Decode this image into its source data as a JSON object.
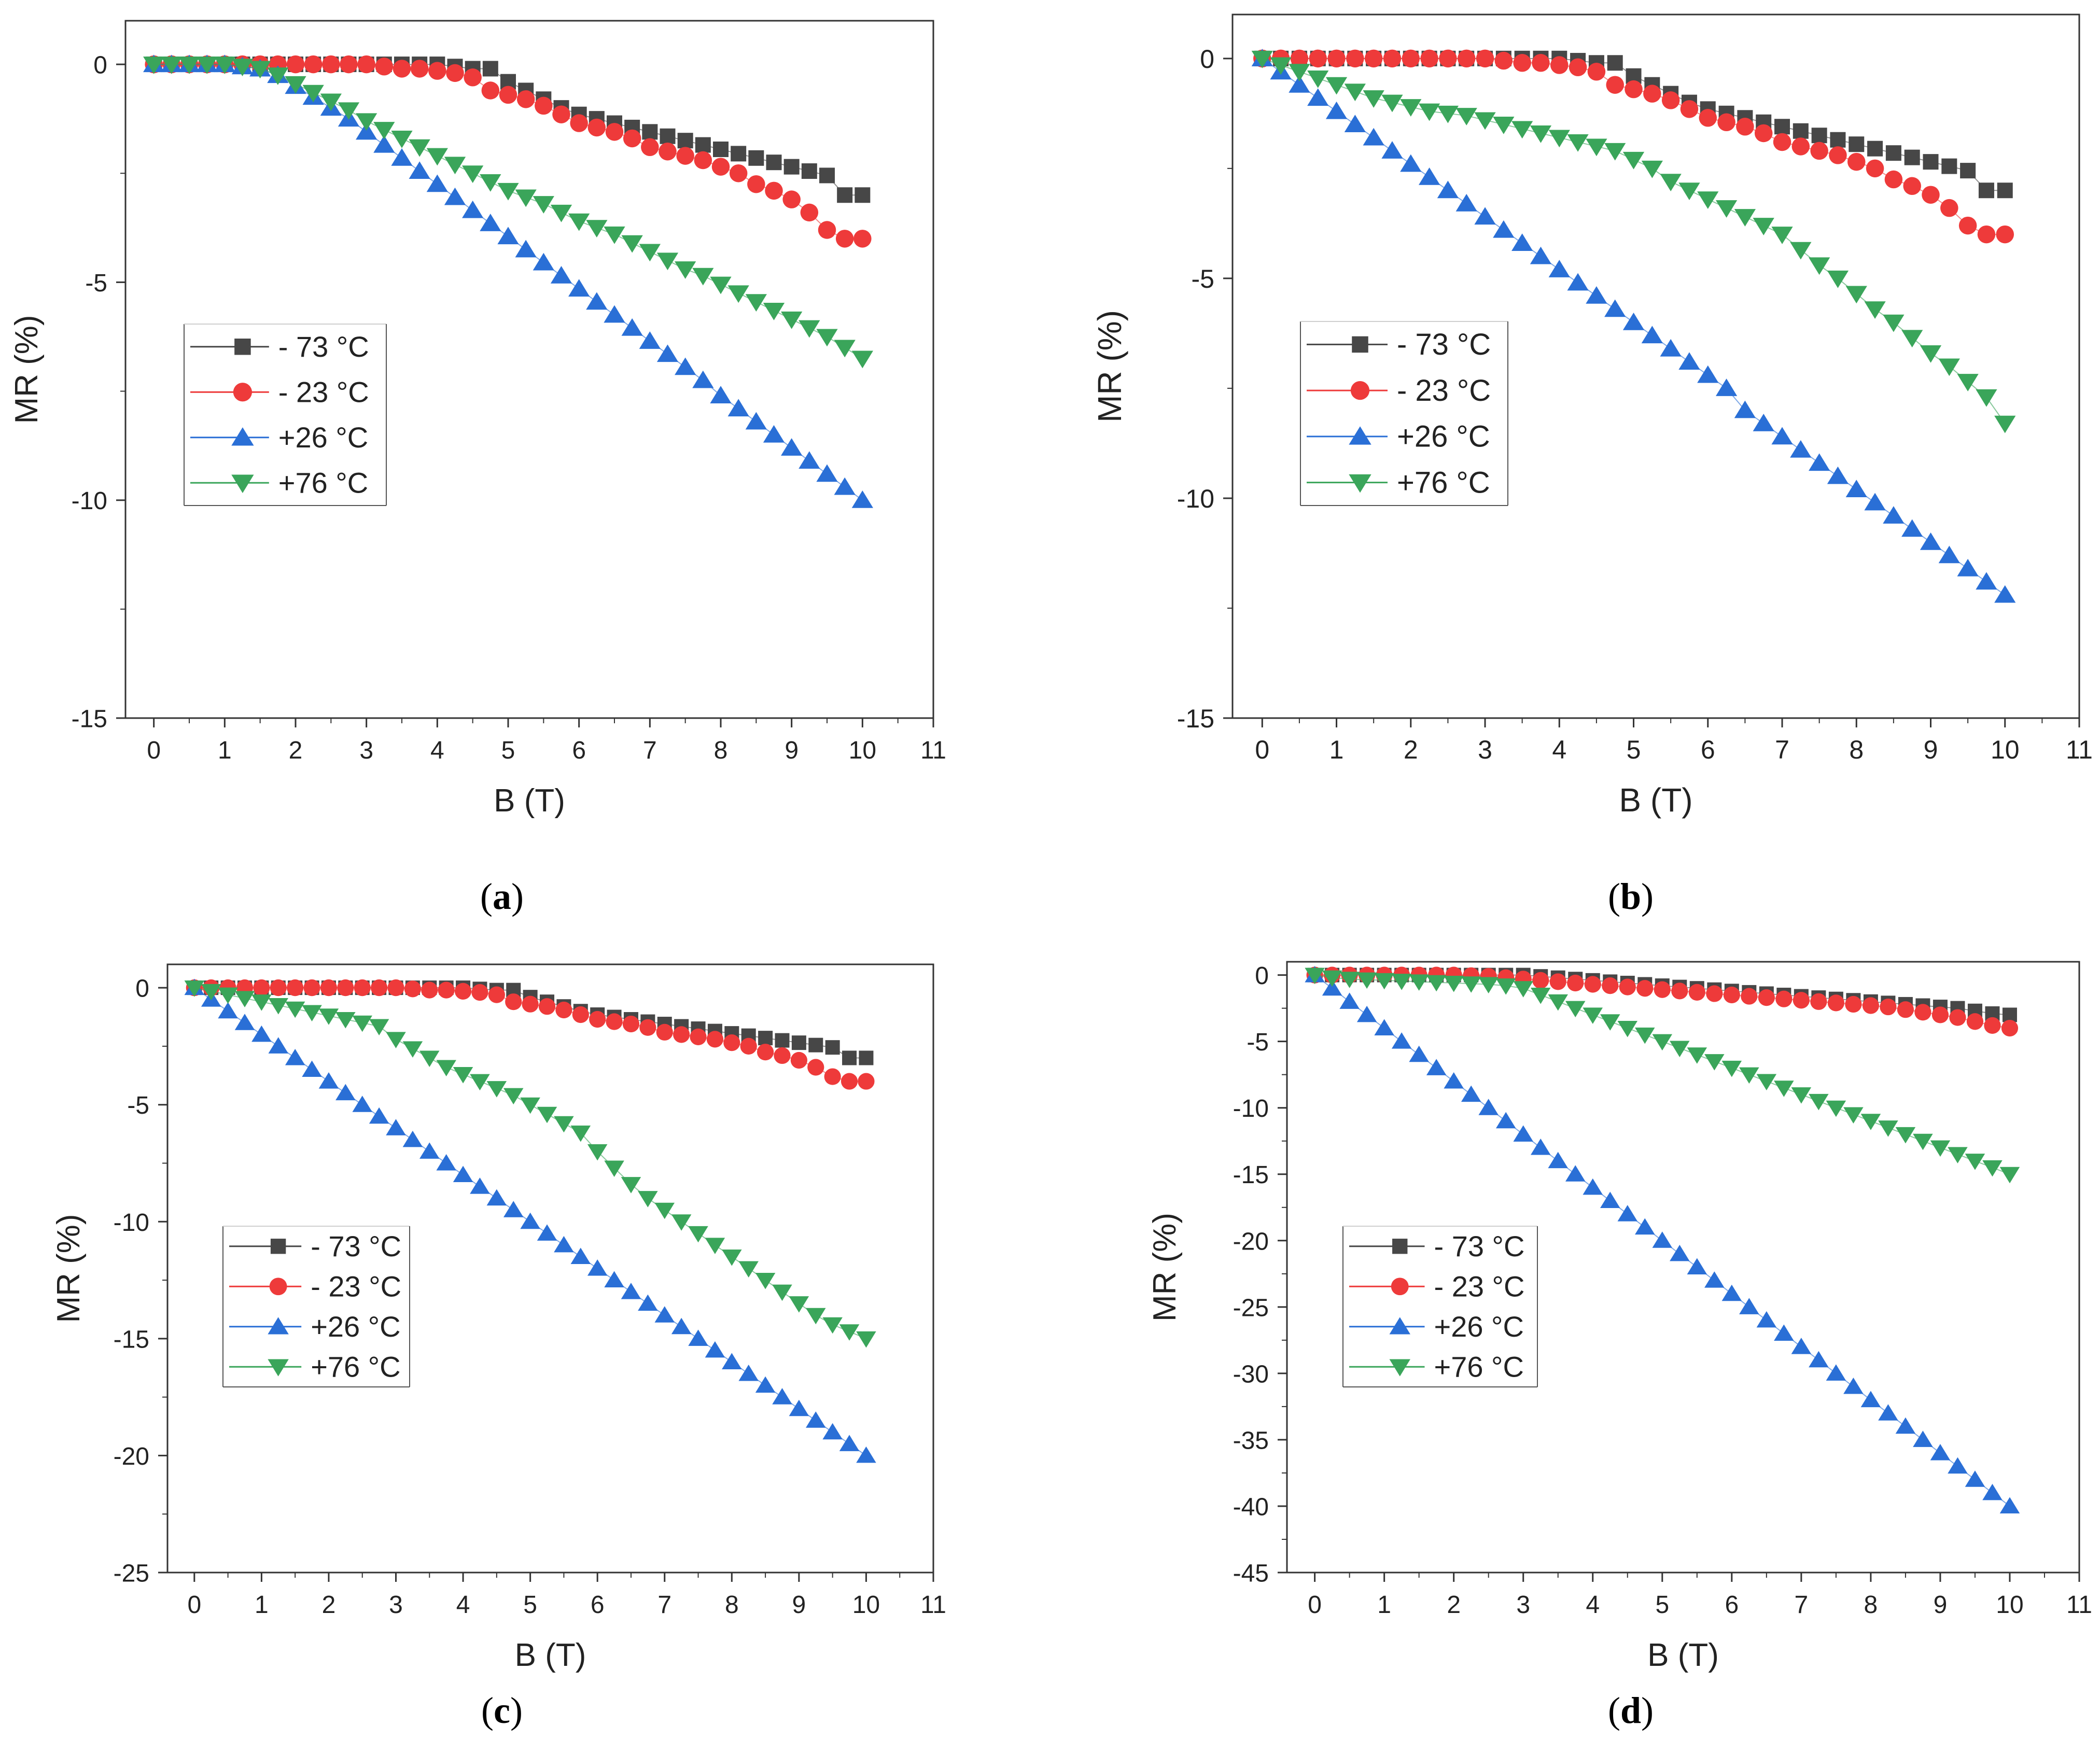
{
  "colors": {
    "s1": "#474747",
    "s2": "#ee3a3a",
    "s3": "#2a6fd6",
    "s4": "#3aa55a"
  },
  "legend": [
    "- 73 °C",
    "- 23 °C",
    "+26 °C",
    "+76 °C"
  ],
  "chart_data": [
    {
      "type": "scatter",
      "panel_label": "a",
      "xlabel": "B (T)",
      "ylabel": "MR (%)",
      "xlim": [
        -0.4,
        11
      ],
      "ylim": [
        -15,
        1
      ],
      "xticks": [
        0,
        1,
        2,
        3,
        4,
        5,
        6,
        7,
        8,
        9,
        10,
        11
      ],
      "yticks": [
        0,
        -5,
        -10,
        -15
      ],
      "legend_position": "center-left",
      "x": [
        0,
        0.25,
        0.5,
        0.75,
        1,
        1.25,
        1.5,
        1.75,
        2,
        2.25,
        2.5,
        2.75,
        3,
        3.25,
        3.5,
        3.75,
        4,
        4.25,
        4.5,
        4.75,
        5,
        5.25,
        5.5,
        5.75,
        6,
        6.25,
        6.5,
        6.75,
        7,
        7.25,
        7.5,
        7.75,
        8,
        8.25,
        8.5,
        8.75,
        9,
        9.25,
        9.5,
        9.75,
        10
      ],
      "series": [
        {
          "name": "- 73 °C",
          "marker": "square",
          "values": [
            0,
            0,
            0,
            0,
            0,
            0,
            0,
            0,
            0,
            0,
            0,
            0,
            0,
            0,
            0,
            0,
            0,
            -0.05,
            -0.1,
            -0.1,
            -0.4,
            -0.6,
            -0.8,
            -1.0,
            -1.15,
            -1.25,
            -1.35,
            -1.45,
            -1.55,
            -1.65,
            -1.75,
            -1.85,
            -1.95,
            -2.05,
            -2.15,
            -2.25,
            -2.35,
            -2.45,
            -2.55,
            -3.0,
            -3.0
          ]
        },
        {
          "name": "- 23 °C",
          "marker": "circle",
          "values": [
            0,
            0,
            0,
            0,
            0,
            0,
            0,
            0,
            0,
            0,
            0,
            0,
            0,
            -0.05,
            -0.1,
            -0.1,
            -0.15,
            -0.2,
            -0.3,
            -0.6,
            -0.7,
            -0.8,
            -0.95,
            -1.15,
            -1.35,
            -1.45,
            -1.55,
            -1.7,
            -1.9,
            -2.0,
            -2.1,
            -2.2,
            -2.35,
            -2.5,
            -2.75,
            -2.9,
            -3.1,
            -3.4,
            -3.8,
            -4.0,
            -4.0
          ]
        },
        {
          "name": "+26 °C",
          "marker": "triangle-up",
          "values": [
            0,
            0,
            0,
            0,
            0,
            -0.05,
            -0.1,
            -0.25,
            -0.5,
            -0.75,
            -1.0,
            -1.25,
            -1.55,
            -1.85,
            -2.15,
            -2.45,
            -2.75,
            -3.05,
            -3.35,
            -3.65,
            -3.95,
            -4.25,
            -4.55,
            -4.85,
            -5.15,
            -5.45,
            -5.75,
            -6.05,
            -6.35,
            -6.65,
            -6.95,
            -7.25,
            -7.6,
            -7.9,
            -8.2,
            -8.5,
            -8.8,
            -9.1,
            -9.4,
            -9.7,
            -10.0
          ]
        },
        {
          "name": "+76 °C",
          "marker": "triangle-down",
          "values": [
            0,
            0,
            0,
            0,
            0,
            -0.05,
            -0.1,
            -0.25,
            -0.45,
            -0.65,
            -0.85,
            -1.05,
            -1.3,
            -1.5,
            -1.7,
            -1.9,
            -2.1,
            -2.3,
            -2.5,
            -2.7,
            -2.9,
            -3.05,
            -3.2,
            -3.4,
            -3.6,
            -3.75,
            -3.9,
            -4.1,
            -4.3,
            -4.5,
            -4.7,
            -4.85,
            -5.05,
            -5.25,
            -5.45,
            -5.65,
            -5.85,
            -6.05,
            -6.25,
            -6.5,
            -6.75
          ]
        }
      ]
    },
    {
      "type": "scatter",
      "panel_label": "b",
      "xlabel": "B (T)",
      "ylabel": "MR (%)",
      "xlim": [
        -0.4,
        11
      ],
      "ylim": [
        -15,
        1
      ],
      "xticks": [
        0,
        1,
        2,
        3,
        4,
        5,
        6,
        7,
        8,
        9,
        10,
        11
      ],
      "yticks": [
        0,
        -5,
        -10,
        -15
      ],
      "legend_position": "center-left",
      "x": [
        0,
        0.25,
        0.5,
        0.75,
        1,
        1.25,
        1.5,
        1.75,
        2,
        2.25,
        2.5,
        2.75,
        3,
        3.25,
        3.5,
        3.75,
        4,
        4.25,
        4.5,
        4.75,
        5,
        5.25,
        5.5,
        5.75,
        6,
        6.25,
        6.5,
        6.75,
        7,
        7.25,
        7.5,
        7.75,
        8,
        8.25,
        8.5,
        8.75,
        9,
        9.25,
        9.5,
        9.75,
        10
      ],
      "series": [
        {
          "name": "- 73 °C",
          "marker": "square",
          "values": [
            0,
            0,
            0,
            0,
            0,
            0,
            0,
            0,
            0,
            0,
            0,
            0,
            0,
            0,
            0,
            0,
            0,
            -0.05,
            -0.1,
            -0.1,
            -0.4,
            -0.6,
            -0.8,
            -1.0,
            -1.15,
            -1.25,
            -1.35,
            -1.45,
            -1.55,
            -1.65,
            -1.75,
            -1.85,
            -1.95,
            -2.05,
            -2.15,
            -2.25,
            -2.35,
            -2.45,
            -2.55,
            -3.0,
            -3.0
          ]
        },
        {
          "name": "- 23 °C",
          "marker": "circle",
          "values": [
            0,
            0,
            0,
            0,
            0,
            0,
            0,
            0,
            0,
            0,
            0,
            0,
            0,
            -0.05,
            -0.1,
            -0.1,
            -0.15,
            -0.2,
            -0.3,
            -0.6,
            -0.7,
            -0.8,
            -0.95,
            -1.15,
            -1.35,
            -1.45,
            -1.55,
            -1.7,
            -1.9,
            -2.0,
            -2.1,
            -2.2,
            -2.35,
            -2.5,
            -2.75,
            -2.9,
            -3.1,
            -3.4,
            -3.8,
            -4.0,
            -4.0
          ]
        },
        {
          "name": "+26 °C",
          "marker": "triangle-up",
          "values": [
            0,
            -0.3,
            -0.6,
            -0.9,
            -1.2,
            -1.5,
            -1.8,
            -2.1,
            -2.4,
            -2.7,
            -3.0,
            -3.3,
            -3.6,
            -3.9,
            -4.2,
            -4.5,
            -4.8,
            -5.1,
            -5.4,
            -5.7,
            -6.0,
            -6.3,
            -6.6,
            -6.9,
            -7.2,
            -7.5,
            -8.0,
            -8.3,
            -8.6,
            -8.9,
            -9.2,
            -9.5,
            -9.8,
            -10.1,
            -10.4,
            -10.7,
            -11.0,
            -11.3,
            -11.6,
            -11.9,
            -12.2
          ]
        },
        {
          "name": "+76 °C",
          "marker": "triangle-down",
          "values": [
            0,
            -0.15,
            -0.3,
            -0.45,
            -0.6,
            -0.75,
            -0.9,
            -1.0,
            -1.1,
            -1.2,
            -1.25,
            -1.3,
            -1.4,
            -1.5,
            -1.6,
            -1.7,
            -1.8,
            -1.9,
            -2.0,
            -2.1,
            -2.3,
            -2.5,
            -2.8,
            -3.0,
            -3.2,
            -3.4,
            -3.6,
            -3.8,
            -4.0,
            -4.35,
            -4.7,
            -5.0,
            -5.35,
            -5.7,
            -6.0,
            -6.35,
            -6.7,
            -7.0,
            -7.35,
            -7.7,
            -8.3
          ]
        }
      ]
    },
    {
      "type": "scatter",
      "panel_label": "c",
      "xlabel": "B (T)",
      "ylabel": "MR (%)",
      "xlim": [
        -0.4,
        11
      ],
      "ylim": [
        -25,
        1
      ],
      "xticks": [
        0,
        1,
        2,
        3,
        4,
        5,
        6,
        7,
        8,
        9,
        10,
        11
      ],
      "yticks": [
        0,
        -5,
        -10,
        -15,
        -20,
        -25
      ],
      "legend_position": "center-left",
      "x": [
        0,
        0.25,
        0.5,
        0.75,
        1,
        1.25,
        1.5,
        1.75,
        2,
        2.25,
        2.5,
        2.75,
        3,
        3.25,
        3.5,
        3.75,
        4,
        4.25,
        4.5,
        4.75,
        5,
        5.25,
        5.5,
        5.75,
        6,
        6.25,
        6.5,
        6.75,
        7,
        7.25,
        7.5,
        7.75,
        8,
        8.25,
        8.5,
        8.75,
        9,
        9.25,
        9.5,
        9.75,
        10
      ],
      "series": [
        {
          "name": "- 73 °C",
          "marker": "square",
          "values": [
            0,
            0,
            0,
            0,
            0,
            0,
            0,
            0,
            0,
            0,
            0,
            0,
            0,
            0,
            0,
            0,
            0,
            -0.05,
            -0.1,
            -0.1,
            -0.4,
            -0.6,
            -0.8,
            -1.0,
            -1.15,
            -1.25,
            -1.35,
            -1.45,
            -1.55,
            -1.65,
            -1.75,
            -1.85,
            -1.95,
            -2.05,
            -2.15,
            -2.25,
            -2.35,
            -2.45,
            -2.55,
            -3.0,
            -3.0
          ]
        },
        {
          "name": "- 23 °C",
          "marker": "circle",
          "values": [
            0,
            0,
            0,
            0,
            0,
            0,
            0,
            0,
            0,
            0,
            0,
            0,
            0,
            -0.05,
            -0.1,
            -0.1,
            -0.15,
            -0.2,
            -0.3,
            -0.6,
            -0.7,
            -0.8,
            -0.95,
            -1.15,
            -1.35,
            -1.45,
            -1.55,
            -1.7,
            -1.9,
            -2.0,
            -2.1,
            -2.2,
            -2.35,
            -2.5,
            -2.75,
            -2.9,
            -3.1,
            -3.4,
            -3.8,
            -4.0,
            -4.0
          ]
        },
        {
          "name": "+26 °C",
          "marker": "triangle-up",
          "values": [
            0,
            -0.5,
            -1.0,
            -1.5,
            -2.0,
            -2.5,
            -3.0,
            -3.5,
            -4.0,
            -4.5,
            -5.0,
            -5.5,
            -6.0,
            -6.5,
            -7.0,
            -7.5,
            -8.0,
            -8.5,
            -9.0,
            -9.5,
            -10.0,
            -10.5,
            -11.0,
            -11.5,
            -12.0,
            -12.5,
            -13.0,
            -13.5,
            -14.0,
            -14.5,
            -15.0,
            -15.5,
            -16.0,
            -16.5,
            -17.0,
            -17.5,
            -18.0,
            -18.5,
            -19.0,
            -19.5,
            -20.0
          ]
        },
        {
          "name": "+76 °C",
          "marker": "triangle-down",
          "values": [
            0,
            -0.15,
            -0.3,
            -0.45,
            -0.6,
            -0.75,
            -0.9,
            -1.05,
            -1.2,
            -1.35,
            -1.5,
            -1.65,
            -2.2,
            -2.6,
            -3.0,
            -3.4,
            -3.7,
            -4.0,
            -4.3,
            -4.6,
            -5.0,
            -5.4,
            -5.8,
            -6.2,
            -7.0,
            -7.7,
            -8.4,
            -9.0,
            -9.5,
            -10.0,
            -10.5,
            -11.0,
            -11.5,
            -12.0,
            -12.5,
            -13.0,
            -13.5,
            -14.0,
            -14.4,
            -14.7,
            -15.0
          ]
        }
      ]
    },
    {
      "type": "scatter",
      "panel_label": "d",
      "xlabel": "B (T)",
      "ylabel": "MR (%)",
      "xlim": [
        -0.4,
        11
      ],
      "ylim": [
        -45,
        1
      ],
      "xticks": [
        0,
        1,
        2,
        3,
        4,
        5,
        6,
        7,
        8,
        9,
        10,
        11
      ],
      "yticks": [
        0,
        -5,
        -10,
        -15,
        -20,
        -25,
        -30,
        -35,
        -40,
        -45
      ],
      "legend_position": "center-left",
      "x": [
        0,
        0.25,
        0.5,
        0.75,
        1,
        1.25,
        1.5,
        1.75,
        2,
        2.25,
        2.5,
        2.75,
        3,
        3.25,
        3.5,
        3.75,
        4,
        4.25,
        4.5,
        4.75,
        5,
        5.25,
        5.5,
        5.75,
        6,
        6.25,
        6.5,
        6.75,
        7,
        7.25,
        7.5,
        7.75,
        8,
        8.25,
        8.5,
        8.75,
        9,
        9.25,
        9.5,
        9.75,
        10
      ],
      "series": [
        {
          "name": "- 73 °C",
          "marker": "square",
          "values": [
            0,
            0,
            0,
            0,
            0,
            0,
            0,
            0,
            0,
            0,
            0,
            0,
            0,
            -0.1,
            -0.2,
            -0.3,
            -0.4,
            -0.5,
            -0.6,
            -0.7,
            -0.8,
            -0.9,
            -1.0,
            -1.1,
            -1.2,
            -1.3,
            -1.4,
            -1.5,
            -1.6,
            -1.7,
            -1.8,
            -1.9,
            -2.0,
            -2.1,
            -2.2,
            -2.3,
            -2.4,
            -2.5,
            -2.7,
            -2.9,
            -3.0
          ]
        },
        {
          "name": "- 23 °C",
          "marker": "circle",
          "values": [
            0,
            0,
            0,
            0,
            0,
            0,
            0,
            0,
            0,
            -0.05,
            -0.1,
            -0.2,
            -0.3,
            -0.4,
            -0.5,
            -0.6,
            -0.7,
            -0.8,
            -0.9,
            -1.0,
            -1.1,
            -1.2,
            -1.3,
            -1.4,
            -1.5,
            -1.6,
            -1.7,
            -1.8,
            -1.9,
            -2.0,
            -2.1,
            -2.2,
            -2.3,
            -2.4,
            -2.6,
            -2.8,
            -3.0,
            -3.2,
            -3.5,
            -3.8,
            -4.0
          ]
        },
        {
          "name": "+26 °C",
          "marker": "triangle-up",
          "values": [
            0,
            -1,
            -2,
            -3,
            -4,
            -5,
            -6,
            -7,
            -8,
            -9,
            -10,
            -11,
            -12,
            -13,
            -14,
            -15,
            -16,
            -17,
            -18,
            -19,
            -20,
            -21,
            -22,
            -23,
            -24,
            -25,
            -26,
            -27,
            -28,
            -29,
            -30,
            -31,
            -32,
            -33,
            -34,
            -35,
            -36,
            -37,
            -38,
            -39,
            -40
          ]
        },
        {
          "name": "+76 °C",
          "marker": "triangle-down",
          "values": [
            0,
            -0.2,
            -0.3,
            -0.35,
            -0.4,
            -0.45,
            -0.5,
            -0.55,
            -0.6,
            -0.65,
            -0.7,
            -0.8,
            -1.0,
            -1.5,
            -2.0,
            -2.5,
            -3.0,
            -3.5,
            -4.0,
            -4.5,
            -5.0,
            -5.5,
            -6.0,
            -6.5,
            -7.0,
            -7.5,
            -8.0,
            -8.5,
            -9.0,
            -9.5,
            -10.0,
            -10.5,
            -11.0,
            -11.5,
            -12.0,
            -12.5,
            -13.0,
            -13.5,
            -14.0,
            -14.5,
            -15.0
          ]
        }
      ]
    }
  ]
}
